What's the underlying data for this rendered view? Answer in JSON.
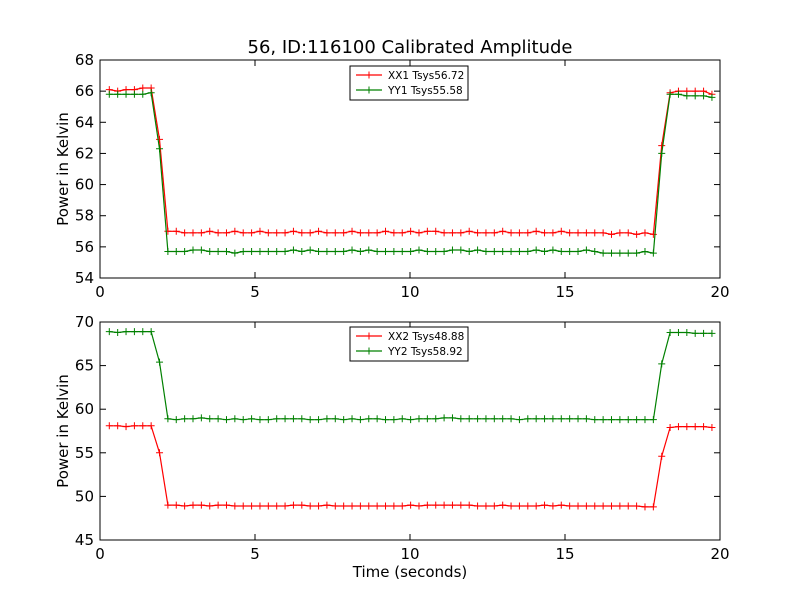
{
  "figure": {
    "title": "56, ID:116100 Calibrated Amplitude"
  },
  "chart_data": [
    {
      "type": "line",
      "title": "56, ID:116100 Calibrated Amplitude",
      "xlabel": "",
      "ylabel": "Power in Kelvin",
      "xlim": [
        0,
        20
      ],
      "ylim": [
        54,
        68
      ],
      "xticks": [
        0,
        5,
        10,
        15,
        20
      ],
      "yticks": [
        54,
        56,
        58,
        60,
        62,
        64,
        66,
        68
      ],
      "legend_position": "top-center",
      "x": [
        0.3,
        0.57,
        0.84,
        1.11,
        1.38,
        1.65,
        1.92,
        2.19,
        2.46,
        2.73,
        3.0,
        3.27,
        3.54,
        3.81,
        4.08,
        4.35,
        4.62,
        4.89,
        5.16,
        5.43,
        5.7,
        5.97,
        6.24,
        6.51,
        6.78,
        7.05,
        7.32,
        7.59,
        7.86,
        8.13,
        8.4,
        8.67,
        8.94,
        9.21,
        9.48,
        9.75,
        10.02,
        10.29,
        10.56,
        10.83,
        11.1,
        11.37,
        11.64,
        11.91,
        12.18,
        12.45,
        12.72,
        12.99,
        13.26,
        13.53,
        13.8,
        14.07,
        14.34,
        14.61,
        14.88,
        15.15,
        15.42,
        15.69,
        15.96,
        16.23,
        16.5,
        16.77,
        17.04,
        17.31,
        17.58,
        17.85,
        18.12,
        18.39,
        18.66,
        18.93,
        19.2,
        19.47,
        19.74
      ],
      "series": [
        {
          "name": "XX1 Tsys56.72",
          "color": "#ff0000",
          "values": [
            66.1,
            66.0,
            66.1,
            66.1,
            66.2,
            66.2,
            62.9,
            57.0,
            57.0,
            56.9,
            56.9,
            56.9,
            57.0,
            56.9,
            56.9,
            57.0,
            56.9,
            56.9,
            57.0,
            56.9,
            56.9,
            56.9,
            57.0,
            56.9,
            56.9,
            57.0,
            56.9,
            56.9,
            56.9,
            57.0,
            56.9,
            56.9,
            56.9,
            57.0,
            56.9,
            56.9,
            57.0,
            56.9,
            57.0,
            57.0,
            56.9,
            56.9,
            56.9,
            57.0,
            56.9,
            56.9,
            56.9,
            57.0,
            56.9,
            56.9,
            56.9,
            57.0,
            56.9,
            56.9,
            57.0,
            56.9,
            56.9,
            56.9,
            56.9,
            56.9,
            56.8,
            56.9,
            56.9,
            56.8,
            56.9,
            56.8,
            62.5,
            65.9,
            66.0,
            66.0,
            66.0,
            66.0,
            65.8
          ]
        },
        {
          "name": "YY1 Tsys55.58",
          "color": "#008000",
          "values": [
            65.8,
            65.8,
            65.8,
            65.8,
            65.8,
            65.9,
            62.3,
            55.7,
            55.7,
            55.7,
            55.8,
            55.8,
            55.7,
            55.7,
            55.7,
            55.6,
            55.7,
            55.7,
            55.7,
            55.7,
            55.7,
            55.7,
            55.8,
            55.7,
            55.8,
            55.7,
            55.7,
            55.7,
            55.7,
            55.8,
            55.7,
            55.8,
            55.7,
            55.7,
            55.7,
            55.7,
            55.7,
            55.8,
            55.7,
            55.7,
            55.7,
            55.8,
            55.8,
            55.7,
            55.8,
            55.7,
            55.7,
            55.7,
            55.7,
            55.7,
            55.7,
            55.8,
            55.7,
            55.8,
            55.7,
            55.7,
            55.7,
            55.8,
            55.7,
            55.6,
            55.6,
            55.6,
            55.6,
            55.6,
            55.7,
            55.6,
            62.0,
            65.8,
            65.8,
            65.7,
            65.7,
            65.7,
            65.6
          ]
        }
      ]
    },
    {
      "type": "line",
      "title": "",
      "xlabel": "Time (seconds)",
      "ylabel": "Power in Kelvin",
      "xlim": [
        0,
        20
      ],
      "ylim": [
        45,
        70
      ],
      "xticks": [
        0,
        5,
        10,
        15,
        20
      ],
      "yticks": [
        45,
        50,
        55,
        60,
        65,
        70
      ],
      "legend_position": "top-center",
      "x": [
        0.3,
        0.57,
        0.84,
        1.11,
        1.38,
        1.65,
        1.92,
        2.19,
        2.46,
        2.73,
        3.0,
        3.27,
        3.54,
        3.81,
        4.08,
        4.35,
        4.62,
        4.89,
        5.16,
        5.43,
        5.7,
        5.97,
        6.24,
        6.51,
        6.78,
        7.05,
        7.32,
        7.59,
        7.86,
        8.13,
        8.4,
        8.67,
        8.94,
        9.21,
        9.48,
        9.75,
        10.02,
        10.29,
        10.56,
        10.83,
        11.1,
        11.37,
        11.64,
        11.91,
        12.18,
        12.45,
        12.72,
        12.99,
        13.26,
        13.53,
        13.8,
        14.07,
        14.34,
        14.61,
        14.88,
        15.15,
        15.42,
        15.69,
        15.96,
        16.23,
        16.5,
        16.77,
        17.04,
        17.31,
        17.58,
        17.85,
        18.12,
        18.39,
        18.66,
        18.93,
        19.2,
        19.47,
        19.74
      ],
      "series": [
        {
          "name": "XX2 Tsys48.88",
          "color": "#ff0000",
          "values": [
            58.1,
            58.1,
            58.0,
            58.1,
            58.1,
            58.1,
            55.0,
            49.0,
            49.0,
            48.9,
            49.0,
            49.0,
            48.9,
            49.0,
            49.0,
            48.9,
            48.9,
            48.9,
            48.9,
            48.9,
            48.9,
            48.9,
            49.0,
            49.0,
            48.9,
            48.9,
            49.0,
            48.9,
            48.9,
            48.9,
            48.9,
            48.9,
            48.9,
            48.9,
            48.9,
            48.9,
            49.0,
            48.9,
            49.0,
            49.0,
            49.0,
            49.0,
            49.0,
            49.0,
            48.9,
            48.9,
            48.9,
            49.0,
            48.9,
            48.9,
            48.9,
            48.9,
            49.0,
            48.9,
            49.0,
            48.9,
            48.9,
            48.9,
            48.9,
            48.9,
            48.9,
            48.9,
            48.9,
            48.9,
            48.8,
            48.8,
            54.6,
            57.9,
            58.0,
            58.0,
            58.0,
            58.0,
            57.9
          ]
        },
        {
          "name": "YY2 Tsys58.92",
          "color": "#008000",
          "values": [
            68.9,
            68.8,
            68.9,
            68.9,
            68.9,
            68.9,
            65.4,
            58.9,
            58.8,
            58.9,
            58.9,
            59.0,
            58.9,
            58.9,
            58.8,
            58.9,
            58.8,
            58.9,
            58.8,
            58.8,
            58.9,
            58.9,
            58.9,
            58.9,
            58.8,
            58.8,
            58.9,
            58.9,
            58.8,
            58.9,
            58.8,
            58.9,
            58.9,
            58.8,
            58.8,
            58.9,
            58.8,
            58.9,
            58.9,
            58.9,
            59.0,
            59.0,
            58.9,
            58.9,
            58.9,
            58.9,
            58.9,
            58.9,
            58.9,
            58.8,
            58.9,
            58.9,
            58.9,
            58.9,
            58.9,
            58.9,
            58.9,
            58.9,
            58.8,
            58.8,
            58.8,
            58.8,
            58.8,
            58.8,
            58.8,
            58.8,
            65.2,
            68.8,
            68.8,
            68.8,
            68.7,
            68.7,
            68.7
          ]
        }
      ]
    }
  ]
}
